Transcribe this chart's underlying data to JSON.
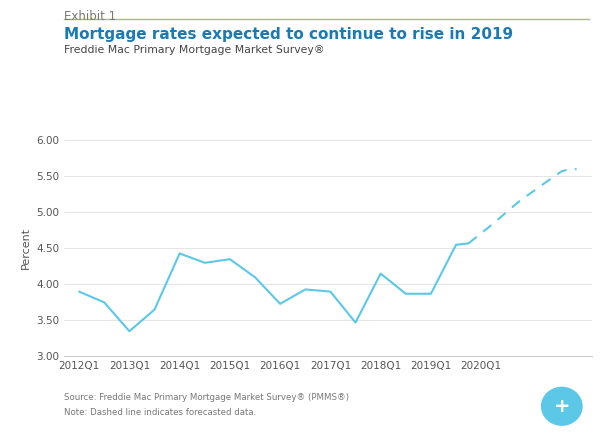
{
  "exhibit_label": "Exhibit 1",
  "title": "Mortgage rates expected to continue to rise in 2019",
  "subtitle": "Freddie Mac Primary Mortgage Market Survey®",
  "source_note": "Source: Freddie Mac Primary Mortgage Market Survey® (PMMS®)",
  "note": "Note: Dashed line indicates forecasted data.",
  "ylabel": "Percent",
  "ylim": [
    3.0,
    6.0
  ],
  "yticks": [
    3.0,
    3.5,
    4.0,
    4.5,
    5.0,
    5.5,
    6.0
  ],
  "x_tick_positions": [
    0,
    1,
    2,
    3,
    4,
    5,
    6,
    7,
    8,
    9
  ],
  "x_labels": [
    "2012Q1",
    "2013Q1",
    "2014Q1",
    "2015Q1",
    "2016Q1",
    "2017Q1",
    "2018Q1",
    "2019Q1",
    "2020Q1",
    ""
  ],
  "solid_x": [
    0,
    0.5,
    1.0,
    1.5,
    2.0,
    2.5,
    3.0,
    3.5,
    4.0,
    4.5,
    5.0,
    5.5,
    6.0,
    6.5,
    7.0,
    7.5,
    7.75
  ],
  "solid_y": [
    3.9,
    3.75,
    3.35,
    3.65,
    4.43,
    4.3,
    4.35,
    4.1,
    3.73,
    3.93,
    3.9,
    3.47,
    4.15,
    3.87,
    3.87,
    4.55,
    4.57
  ],
  "dashed_x": [
    7.75,
    8.25,
    8.75,
    9.25,
    9.6,
    9.75,
    9.9
  ],
  "dashed_y": [
    4.57,
    4.85,
    5.15,
    5.4,
    5.57,
    5.6,
    5.6
  ],
  "line_color": "#5bc8e8",
  "title_color": "#1a7ab5",
  "exhibit_color": "#777777",
  "subtitle_color": "#444444",
  "note_color": "#777777",
  "background_color": "#ffffff",
  "accent_line_color": "#a8c060",
  "circle_button_color": "#5bc8e8"
}
